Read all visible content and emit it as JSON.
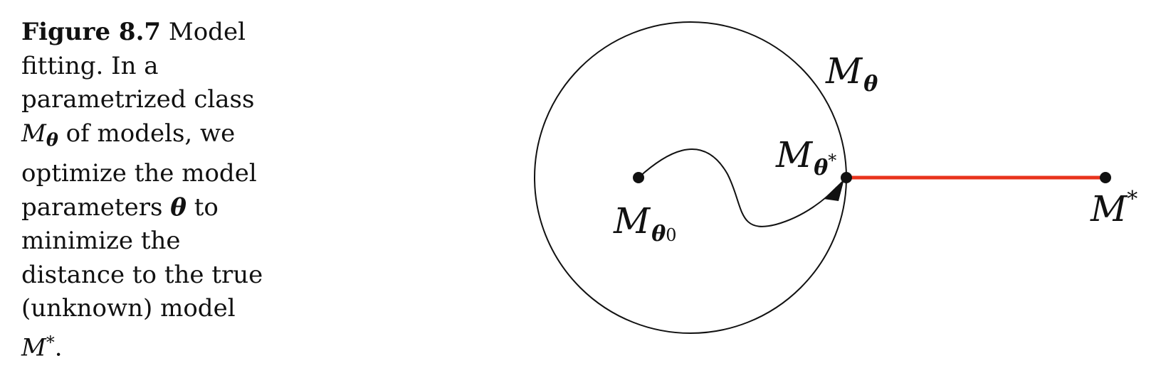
{
  "caption": {
    "figure_label": "Figure 8.7",
    "lines": [
      " Model",
      "fitting. In a",
      "parametrized class",
      " of models, we",
      "optimize the model",
      "parameters ",
      " to",
      "minimize the",
      "distance to the true",
      "(unknown) model",
      "."
    ],
    "symbol_M": "M",
    "symbol_theta": "θ",
    "symbol_star": "*"
  },
  "diagram": {
    "labels": {
      "class_M": "M",
      "class_sub": "θ",
      "start_M": "M",
      "start_sub": "θ",
      "start_index": "0",
      "optimum_M": "M",
      "optimum_sub": "θ",
      "optimum_star": "*",
      "true_M": "M",
      "true_star": "*"
    },
    "colors": {
      "stroke": "#111111",
      "distance_line": "#e8331c"
    }
  }
}
